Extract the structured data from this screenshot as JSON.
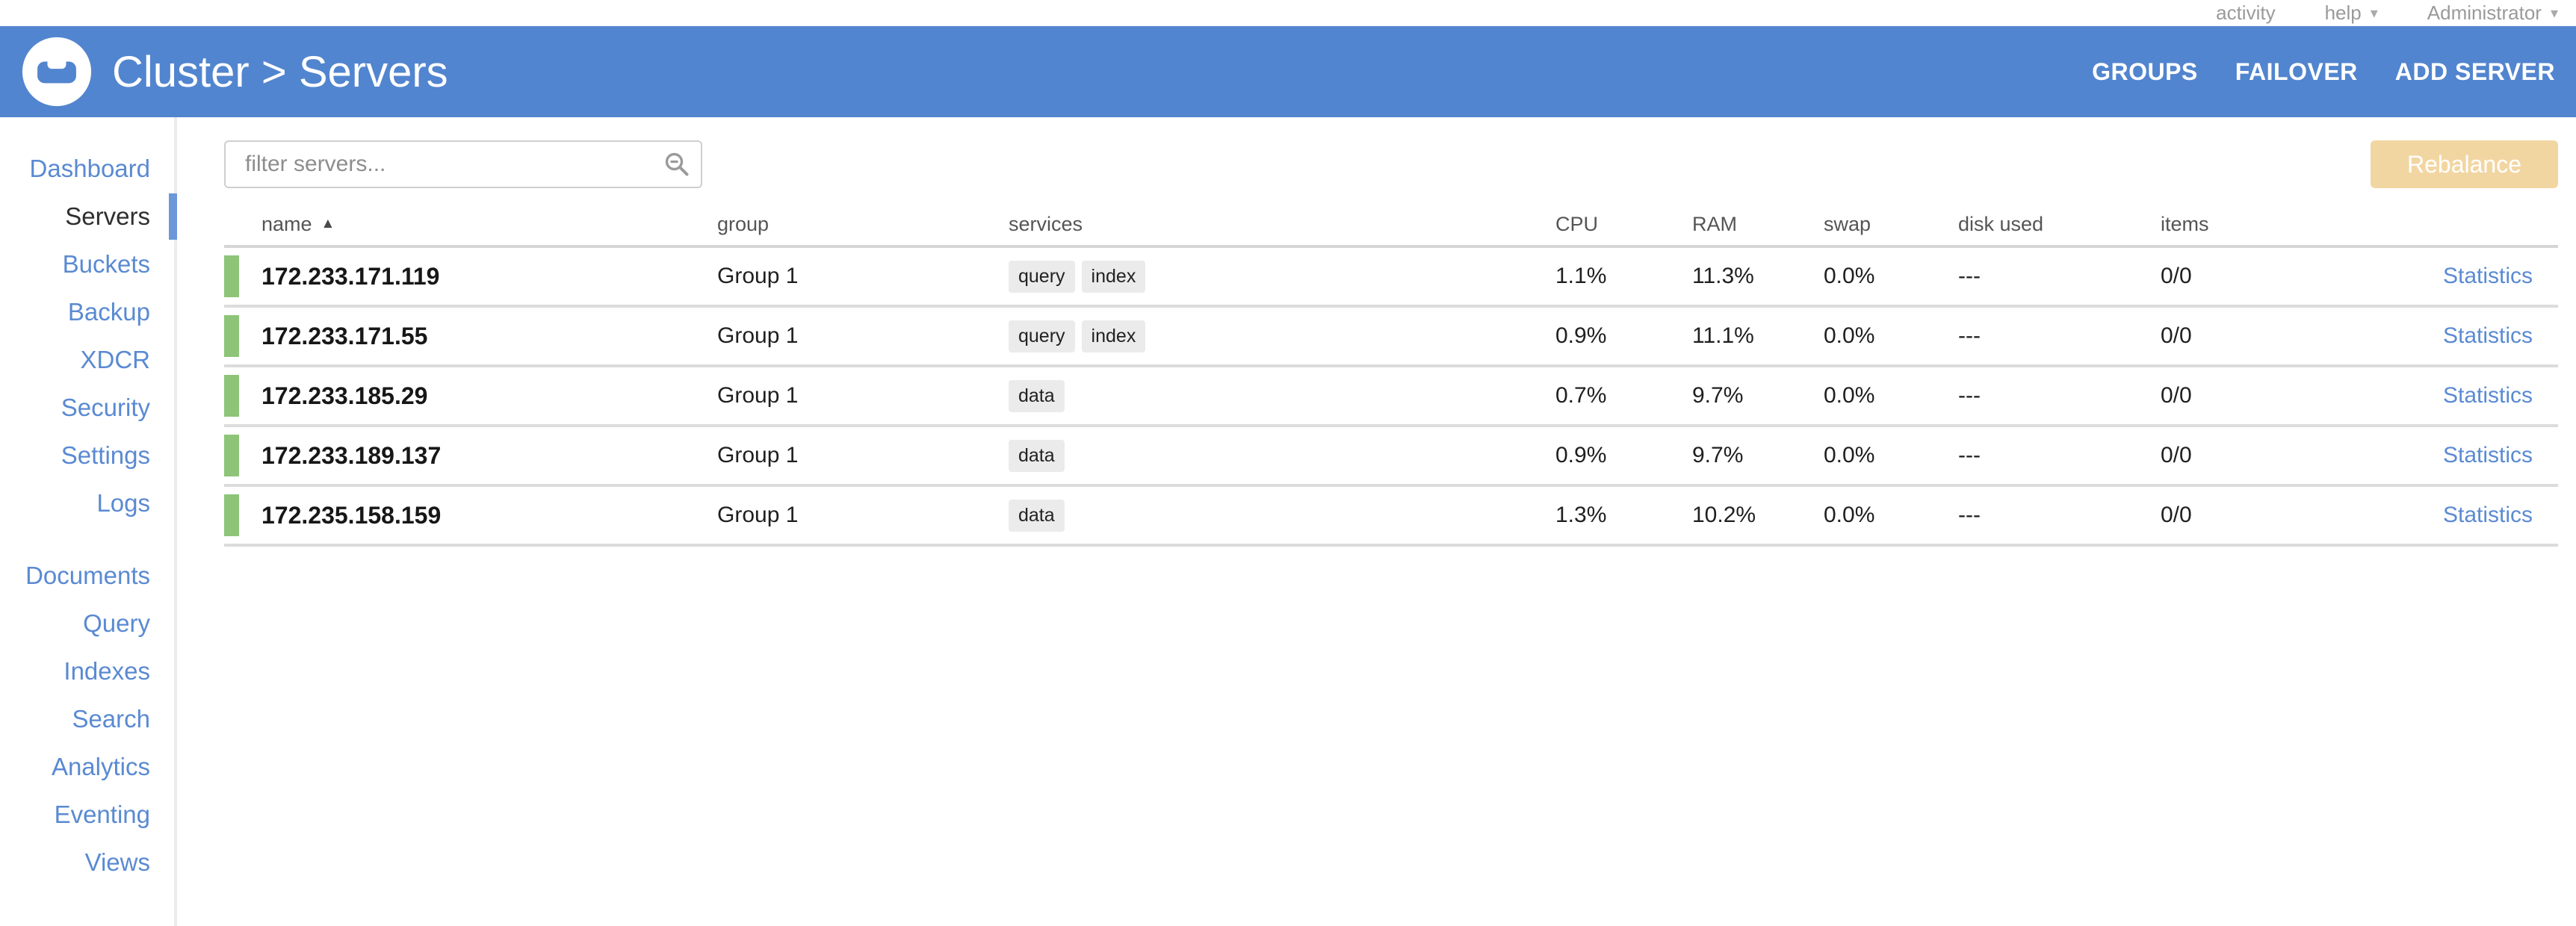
{
  "topbar": {
    "activity_label": "activity",
    "help_label": "help",
    "user_label": "Administrator",
    "caret_icon": "▾"
  },
  "header": {
    "bg_color": "#5285CF",
    "title": "Cluster > Servers",
    "actions": [
      {
        "label": "GROUPS"
      },
      {
        "label": "FAILOVER"
      },
      {
        "label": "ADD SERVER"
      }
    ]
  },
  "sidebar": {
    "groups": [
      [
        {
          "label": "Dashboard"
        },
        {
          "label": "Servers",
          "active": true
        },
        {
          "label": "Buckets"
        },
        {
          "label": "Backup"
        },
        {
          "label": "XDCR"
        },
        {
          "label": "Security"
        },
        {
          "label": "Settings"
        },
        {
          "label": "Logs"
        }
      ],
      [
        {
          "label": "Documents"
        },
        {
          "label": "Query"
        },
        {
          "label": "Indexes"
        },
        {
          "label": "Search"
        },
        {
          "label": "Analytics"
        },
        {
          "label": "Eventing"
        },
        {
          "label": "Views"
        }
      ]
    ],
    "link_color": "#5A8AD2",
    "active_indicator_color": "#6C97D9"
  },
  "toolbar": {
    "filter_placeholder": "filter servers...",
    "rebalance_label": "Rebalance",
    "rebalance_color": "#F2D6A2"
  },
  "table": {
    "sort_icon": "▲",
    "headers": [
      "name",
      "group",
      "services",
      "CPU",
      "RAM",
      "swap",
      "disk used",
      "items"
    ],
    "statistics_label": "Statistics",
    "healthy_color": "#8EC478",
    "rows": [
      {
        "name": "172.233.171.119",
        "group": "Group 1",
        "services": [
          "query",
          "index"
        ],
        "cpu": "1.1%",
        "ram": "11.3%",
        "swap": "0.0%",
        "disk_used": "---",
        "items": "0/0"
      },
      {
        "name": "172.233.171.55",
        "group": "Group 1",
        "services": [
          "query",
          "index"
        ],
        "cpu": "0.9%",
        "ram": "11.1%",
        "swap": "0.0%",
        "disk_used": "---",
        "items": "0/0"
      },
      {
        "name": "172.233.185.29",
        "group": "Group 1",
        "services": [
          "data"
        ],
        "cpu": "0.7%",
        "ram": "9.7%",
        "swap": "0.0%",
        "disk_used": "---",
        "items": "0/0"
      },
      {
        "name": "172.233.189.137",
        "group": "Group 1",
        "services": [
          "data"
        ],
        "cpu": "0.9%",
        "ram": "9.7%",
        "swap": "0.0%",
        "disk_used": "---",
        "items": "0/0"
      },
      {
        "name": "172.235.158.159",
        "group": "Group 1",
        "services": [
          "data"
        ],
        "cpu": "1.3%",
        "ram": "10.2%",
        "swap": "0.0%",
        "disk_used": "---",
        "items": "0/0"
      }
    ]
  }
}
